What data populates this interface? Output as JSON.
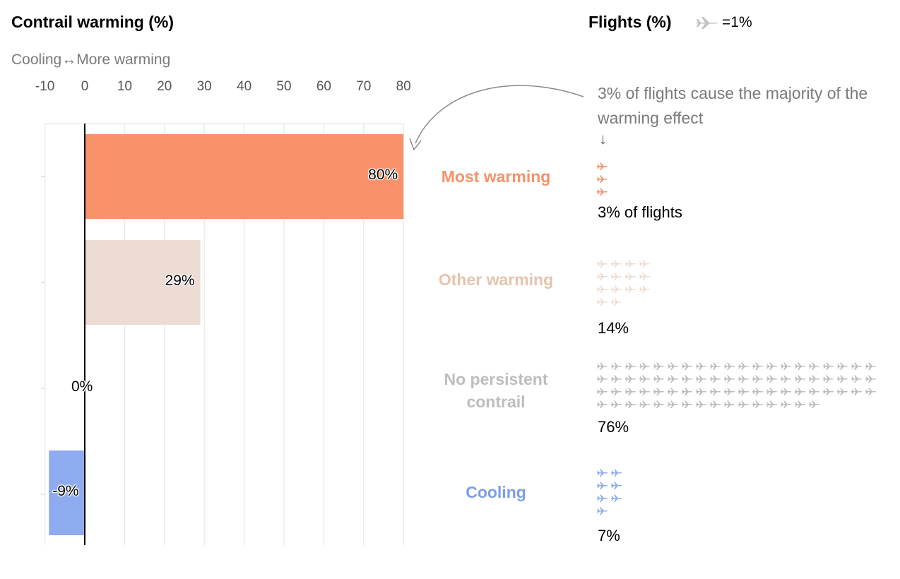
{
  "chart_data": {
    "type": "bar",
    "title": "Contrail warming (%)",
    "subtitle": "Cooling↔More warming",
    "xlim": [
      -10,
      80
    ],
    "ticks": [
      "-10",
      "0",
      "10",
      "20",
      "30",
      "40",
      "50",
      "60",
      "70",
      "80"
    ],
    "grid": true,
    "categories": [
      "Most warming",
      "Other warming",
      "No persistent contrail",
      "Cooling"
    ],
    "values": [
      80,
      29,
      0,
      -9
    ],
    "value_labels": [
      "80%",
      "29%",
      "0%",
      "-9%"
    ],
    "colors": [
      "#f9926a",
      "#ecdcd4",
      "#bdbdbd",
      "#8fabef"
    ],
    "label_colors": [
      "#f7916a",
      "#e6c3ae",
      "#bdbdbd",
      "#7c9ee8"
    ],
    "flights": {
      "title": "Flights (%)",
      "legend_unit": "=1%",
      "icon": "plane-icon",
      "icon_color": "#bdbdbd",
      "values": [
        3,
        14,
        76,
        7
      ],
      "per_row": [
        1,
        4,
        20,
        2
      ],
      "pct_labels": [
        "3% of flights",
        "14%",
        "76%",
        "7%"
      ]
    },
    "annotation": "3% of flights cause the majority of the warming effect"
  }
}
